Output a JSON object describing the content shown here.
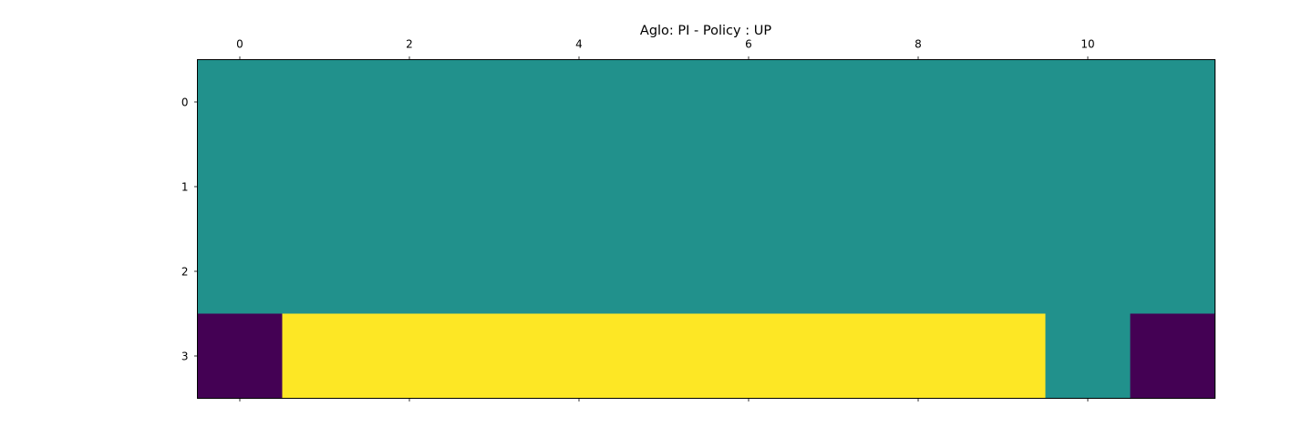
{
  "chart_data": {
    "type": "heatmap",
    "title": "Aglo: PI - Policy : UP",
    "x_ticks": [
      0,
      2,
      4,
      6,
      8,
      10
    ],
    "y_ticks": [
      0,
      1,
      2,
      3
    ],
    "x_range": [
      -0.5,
      11.5
    ],
    "y_range": [
      3.5,
      -0.5
    ],
    "grid": false,
    "colormap": {
      "name": "viridis",
      "value_colors": {
        "0": "#440154",
        "1": "#21918c",
        "2": "#fde725"
      }
    },
    "values": [
      [
        1,
        1,
        1,
        1,
        1,
        1,
        1,
        1,
        1,
        1,
        1,
        1
      ],
      [
        1,
        1,
        1,
        1,
        1,
        1,
        1,
        1,
        1,
        1,
        1,
        1
      ],
      [
        1,
        1,
        1,
        1,
        1,
        1,
        1,
        1,
        1,
        1,
        1,
        1
      ],
      [
        0,
        2,
        2,
        2,
        2,
        2,
        2,
        2,
        2,
        2,
        1,
        0
      ]
    ]
  }
}
